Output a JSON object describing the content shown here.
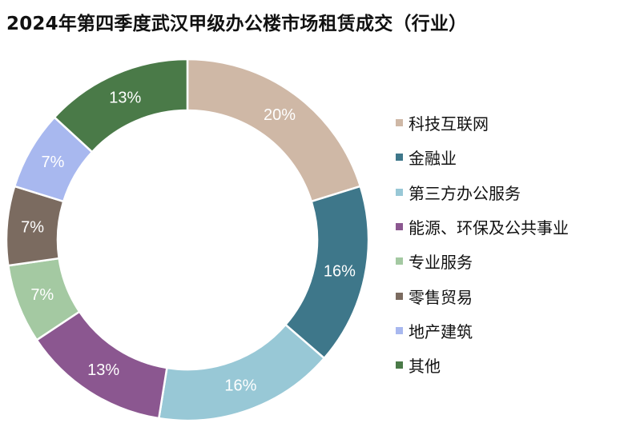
{
  "chart_data": {
    "type": "pie",
    "title": "2024年第四季度武汉甲级办公楼市场租赁成交（行业）",
    "categories": [
      "科技互联网",
      "金融业",
      "第三方办公服务",
      "能源、环保及公共事业",
      "专业服务",
      "零售贸易",
      "地产建筑",
      "其他"
    ],
    "values": [
      20,
      16,
      16,
      13,
      7,
      7,
      7,
      13
    ],
    "value_labels": [
      "20%",
      "16%",
      "16%",
      "13%",
      "7%",
      "7%",
      "7%",
      "13%"
    ],
    "colors": [
      "#cfb8a6",
      "#3e778a",
      "#98c8d6",
      "#8b5790",
      "#a4c9a2",
      "#7b6b60",
      "#a8b8ef",
      "#4a7a48"
    ],
    "donut": true,
    "legend_position": "right"
  }
}
